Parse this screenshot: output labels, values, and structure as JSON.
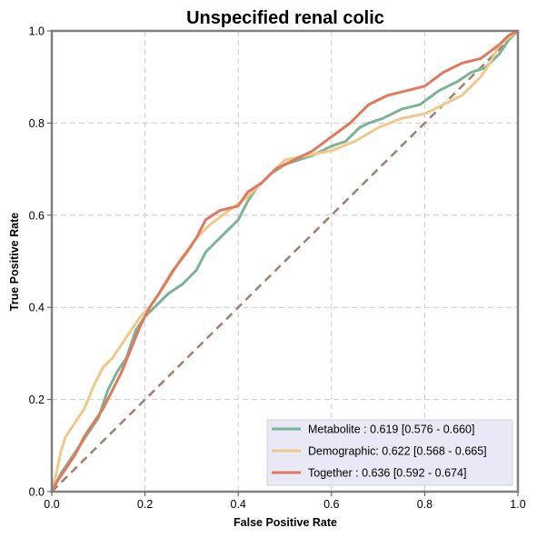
{
  "chart_data": {
    "type": "line",
    "title": "Unspecified renal colic",
    "xlabel": "False Positive Rate",
    "ylabel": "True Positive Rate",
    "xlim": [
      0,
      1
    ],
    "ylim": [
      0,
      1
    ],
    "xticks": [
      "0.0",
      "0.2",
      "0.4",
      "0.6",
      "0.8",
      "1.0"
    ],
    "yticks": [
      "0.0",
      "0.2",
      "0.4",
      "0.6",
      "0.8",
      "1.0"
    ],
    "grid": true,
    "legend_position": "lower-right",
    "diagonal": {
      "x": [
        0,
        1
      ],
      "y": [
        0,
        1
      ],
      "color": "#a08070",
      "style": "dashed"
    },
    "series": [
      {
        "name": "Metabolite",
        "label": "Metabolite      : 0.619 [0.576 - 0.660]",
        "color": "#7db396",
        "x": [
          0,
          0.01,
          0.02,
          0.04,
          0.06,
          0.08,
          0.1,
          0.12,
          0.14,
          0.16,
          0.18,
          0.2,
          0.22,
          0.25,
          0.28,
          0.31,
          0.33,
          0.36,
          0.4,
          0.42,
          0.44,
          0.47,
          0.5,
          0.53,
          0.56,
          0.6,
          0.63,
          0.66,
          0.68,
          0.71,
          0.75,
          0.79,
          0.83,
          0.87,
          0.9,
          0.93,
          0.96,
          0.98,
          1.0
        ],
        "y": [
          0,
          0.02,
          0.04,
          0.07,
          0.1,
          0.13,
          0.16,
          0.22,
          0.26,
          0.29,
          0.35,
          0.38,
          0.4,
          0.43,
          0.45,
          0.48,
          0.52,
          0.55,
          0.59,
          0.63,
          0.66,
          0.69,
          0.71,
          0.72,
          0.73,
          0.75,
          0.76,
          0.79,
          0.8,
          0.81,
          0.83,
          0.84,
          0.87,
          0.89,
          0.91,
          0.92,
          0.95,
          0.98,
          1.0
        ]
      },
      {
        "name": "Demographic",
        "label": "Demographic: 0.622 [0.568 - 0.665]",
        "color": "#f0c98a",
        "x": [
          0,
          0.01,
          0.02,
          0.03,
          0.05,
          0.07,
          0.09,
          0.11,
          0.13,
          0.15,
          0.17,
          0.19,
          0.21,
          0.23,
          0.25,
          0.28,
          0.31,
          0.34,
          0.38,
          0.42,
          0.46,
          0.5,
          0.55,
          0.6,
          0.65,
          0.7,
          0.75,
          0.8,
          0.84,
          0.88,
          0.9,
          0.92,
          0.94,
          0.96,
          1.0
        ],
        "y": [
          0,
          0.04,
          0.09,
          0.12,
          0.15,
          0.18,
          0.23,
          0.27,
          0.29,
          0.32,
          0.35,
          0.38,
          0.4,
          0.43,
          0.46,
          0.51,
          0.55,
          0.58,
          0.61,
          0.64,
          0.68,
          0.72,
          0.73,
          0.74,
          0.76,
          0.79,
          0.81,
          0.82,
          0.84,
          0.86,
          0.88,
          0.9,
          0.93,
          0.97,
          1.0
        ]
      },
      {
        "name": "Together",
        "label": "Together       : 0.636 [0.592 - 0.674]",
        "color": "#e07a5f",
        "x": [
          0,
          0.01,
          0.03,
          0.05,
          0.07,
          0.09,
          0.11,
          0.13,
          0.15,
          0.17,
          0.19,
          0.21,
          0.23,
          0.26,
          0.29,
          0.31,
          0.33,
          0.36,
          0.4,
          0.42,
          0.45,
          0.48,
          0.52,
          0.56,
          0.6,
          0.64,
          0.68,
          0.72,
          0.76,
          0.8,
          0.84,
          0.88,
          0.92,
          0.96,
          0.98,
          1.0
        ],
        "y": [
          0,
          0.02,
          0.05,
          0.08,
          0.12,
          0.15,
          0.18,
          0.22,
          0.26,
          0.31,
          0.36,
          0.4,
          0.43,
          0.48,
          0.52,
          0.55,
          0.59,
          0.61,
          0.62,
          0.65,
          0.67,
          0.7,
          0.72,
          0.74,
          0.77,
          0.8,
          0.84,
          0.86,
          0.87,
          0.88,
          0.91,
          0.93,
          0.94,
          0.97,
          0.99,
          1.0
        ]
      }
    ]
  }
}
